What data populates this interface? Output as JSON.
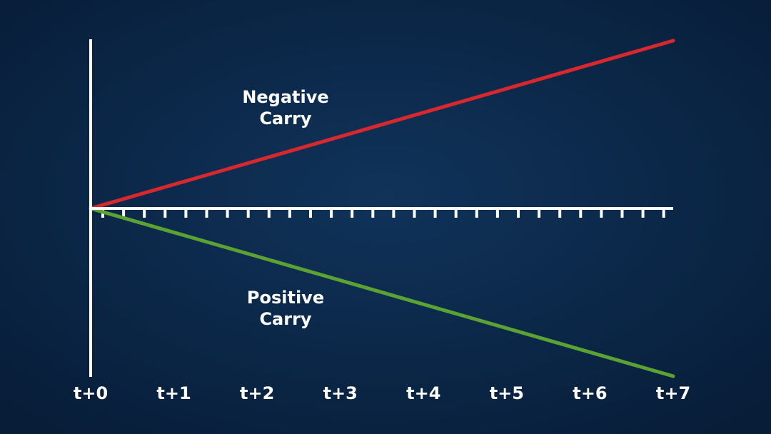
{
  "diagram": {
    "x_labels": [
      "t+0",
      "t+1",
      "t+2",
      "t+3",
      "t+4",
      "t+5",
      "t+6",
      "t+7"
    ],
    "negative_label": {
      "line1": "Negative",
      "line2": "Carry"
    },
    "positive_label": {
      "line1": "Positive",
      "line2": "Carry"
    }
  }
}
